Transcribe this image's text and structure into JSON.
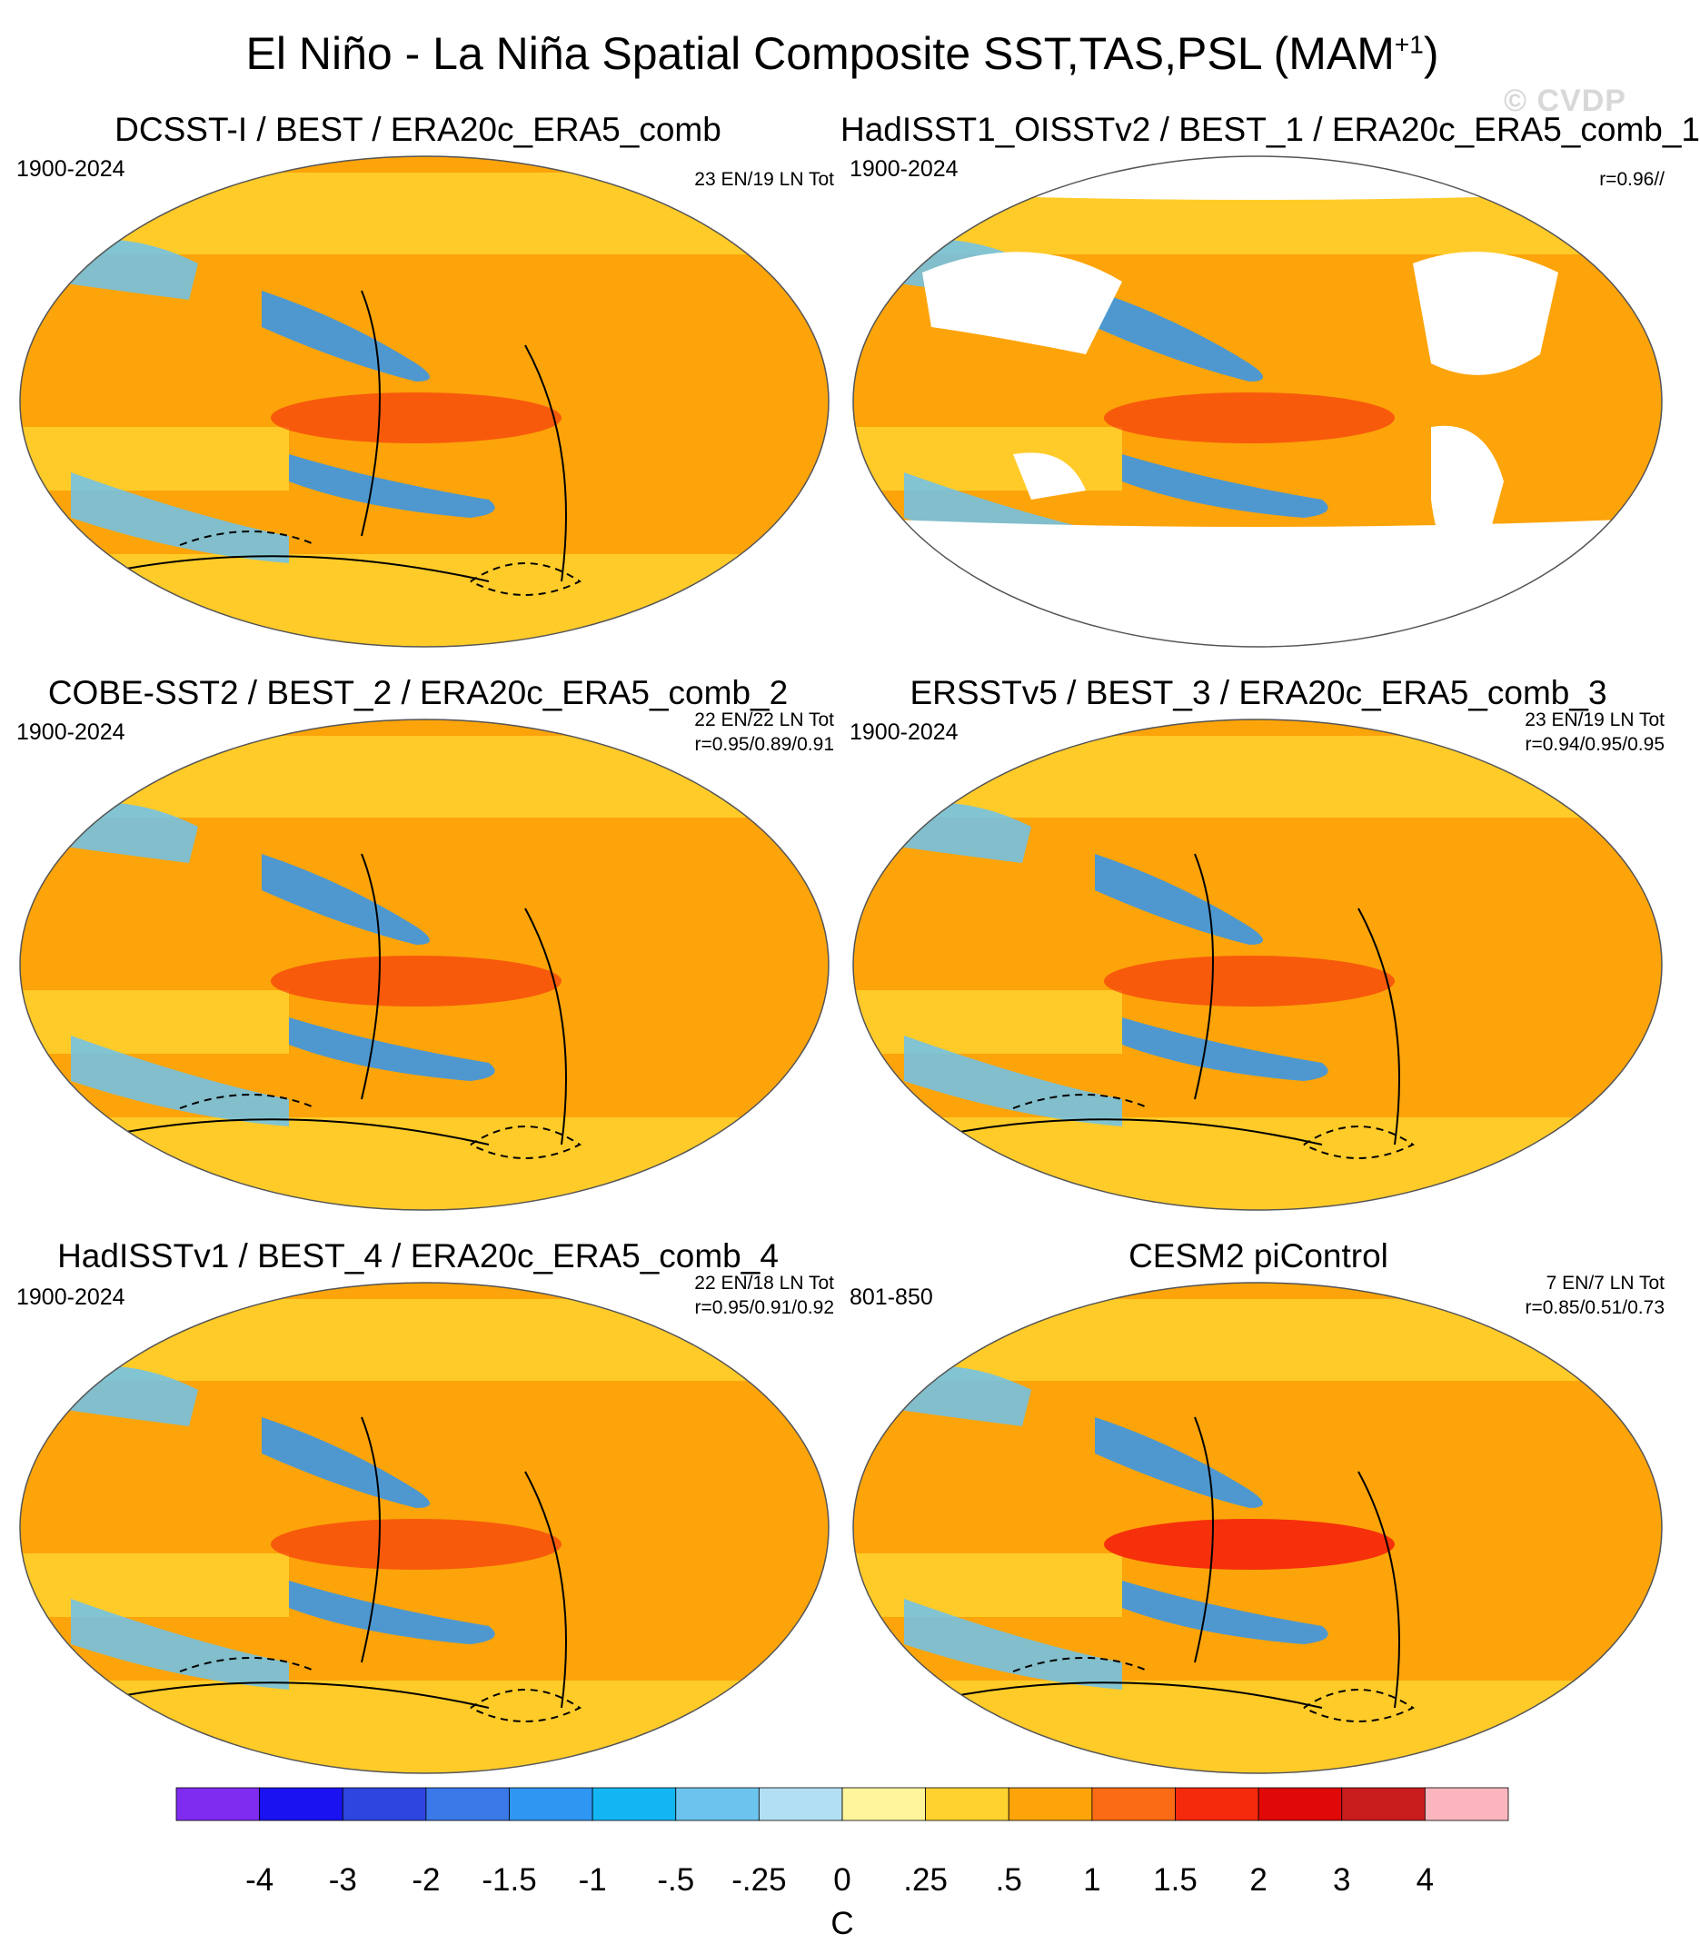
{
  "title": {
    "main": "El Niño - La Niña Spatial Composite SST,TAS,PSL (MAM",
    "sup": "+1",
    "close": ")"
  },
  "watermark": "© CVDP",
  "panels": [
    {
      "title": "DCSST-I / BEST / ERA20c_ERA5_comb",
      "period": "1900-2024",
      "line1": "23 EN/19 LN Tot",
      "line2": "",
      "land_masked": false
    },
    {
      "title": "HadISST1_OISSTv2 / BEST_1 / ERA20c_ERA5_comb_1",
      "period": "1900-2024",
      "line1": "",
      "line2": "r=0.96//",
      "land_masked": true
    },
    {
      "title": "COBE-SST2 / BEST_2 / ERA20c_ERA5_comb_2",
      "period": "1900-2024",
      "line1": "22 EN/22 LN Tot",
      "line2": "r=0.95/0.89/0.91",
      "land_masked": false
    },
    {
      "title": "ERSSTv5 / BEST_3 / ERA20c_ERA5_comb_3",
      "period": "1900-2024",
      "line1": "23 EN/19 LN Tot",
      "line2": "r=0.94/0.95/0.95",
      "land_masked": false
    },
    {
      "title": "HadISSTv1 / BEST_4 / ERA20c_ERA5_comb_4",
      "period": "1900-2024",
      "line1": "22 EN/18 LN Tot",
      "line2": "r=0.95/0.91/0.92",
      "land_masked": false
    },
    {
      "title": "CESM2 piControl",
      "period": "801-850",
      "line1": "7 EN/7 LN Tot",
      "line2": "r=0.85/0.51/0.73",
      "land_masked": false
    }
  ],
  "chart_data": {
    "type": "heatmap",
    "description_level": "composite difference maps (El Niño minus La Niña), shaded SST/TAS with PSL contours",
    "colorbar": {
      "units": "C",
      "levels": [
        "-4",
        "-3",
        "-2",
        "-1.5",
        "-1",
        "-.5",
        "-.25",
        "0",
        ".25",
        ".5",
        "1",
        "1.5",
        "2",
        "3",
        "4"
      ],
      "colors": [
        "#7f2cf0",
        "#1a12f0",
        "#2e45e0",
        "#3a78e8",
        "#2f96f2",
        "#13b6f2",
        "#6cc3ee",
        "#b3dff2",
        "#fff59c",
        "#ffd22f",
        "#fca40a",
        "#fb6a14",
        "#f52a0c",
        "#e00808",
        "#c91c1c",
        "#fdb5bd"
      ]
    },
    "palette": {
      "ocean_warm": "#fca40a",
      "ocean_light": "#ffd22f",
      "cool": "#6cc3ee",
      "cool_strong": "#2f96f2",
      "hot": "#f52a0c",
      "land_white": "#ffffff",
      "outline": "#555555",
      "psl_contour": "#000000"
    }
  }
}
